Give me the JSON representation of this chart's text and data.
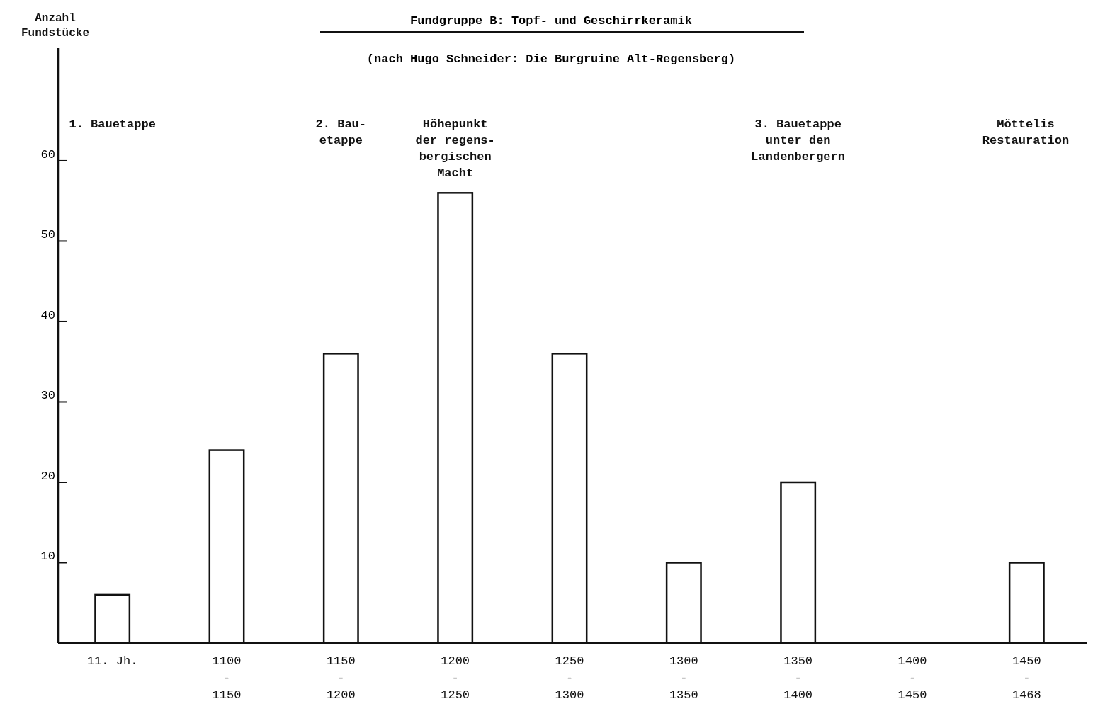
{
  "chart_data": {
    "type": "bar",
    "title": "Fundgruppe B: Topf- und Geschirrkeramik",
    "subtitle": "(nach Hugo Schneider: Die Burgruine Alt-Regensberg)",
    "ylabel": "Anzahl\nFundstücke",
    "categories": [
      "11. Jh.",
      "1100\n-\n1150",
      "1150\n-\n1200",
      "1200\n-\n1250",
      "1250\n-\n1300",
      "1300\n-\n1350",
      "1350\n-\n1400",
      "1400\n-\n1450",
      "1450\n-\n1468"
    ],
    "values": [
      6,
      24,
      36,
      56,
      36,
      10,
      20,
      0,
      10
    ],
    "color": "#ffffff",
    "ylim": [
      0,
      74
    ],
    "yticks": [
      10,
      20,
      30,
      40,
      50,
      60
    ],
    "grid": false,
    "annotations": [
      "1. Bauetappe",
      "2. Bau-\netappe",
      "Höhepunkt\nder regens-\nbergischen\nMacht",
      "3. Bauetappe\nunter den\nLandenbergern",
      "Möttelis\nRestauration"
    ]
  }
}
